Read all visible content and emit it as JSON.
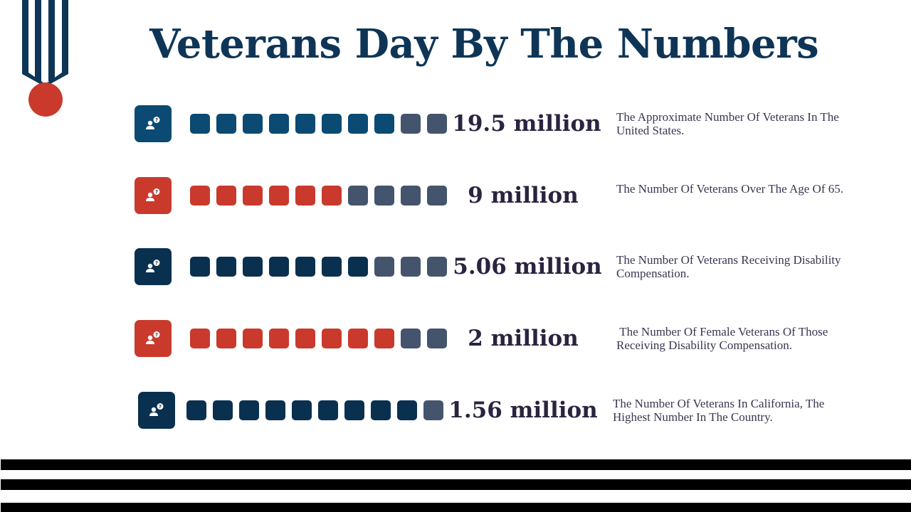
{
  "title": "Veterans Day By The Numbers",
  "colors": {
    "title": "#0e3556",
    "blue": "#0b4a73",
    "navy": "#0a3050",
    "red": "#c93a2d",
    "slate": "#45546d",
    "text": "#2b2340"
  },
  "icon": "person-question-icon",
  "stats": [
    {
      "value": "19.5 million",
      "description": "The Approximate Number Of Veterans In The United States.",
      "tile_color": "#0b4a73",
      "filled_color": "#0b4a73",
      "filled": 8,
      "total": 10
    },
    {
      "value": "9 million",
      "description": "The Number Of Veterans Over The Age Of 65.",
      "tile_color": "#c93a2d",
      "filled_color": "#c93a2d",
      "filled": 6,
      "total": 10
    },
    {
      "value": "5.06 million",
      "description": "The Number Of Veterans Receiving Disability Compensation.",
      "tile_color": "#0a3050",
      "filled_color": "#0a3050",
      "filled": 7,
      "total": 10
    },
    {
      "value": "2 million",
      "description": " The Number Of Female Veterans Of Those Receiving Disability Compensation.",
      "tile_color": "#c93a2d",
      "filled_color": "#c93a2d",
      "filled": 8,
      "total": 10
    },
    {
      "value": "1.56 million",
      "description": "The Number Of Veterans In California, The Highest Number In The Country.",
      "tile_color": "#0a3050",
      "filled_color": "#0a3050",
      "filled": 9,
      "total": 10
    }
  ]
}
